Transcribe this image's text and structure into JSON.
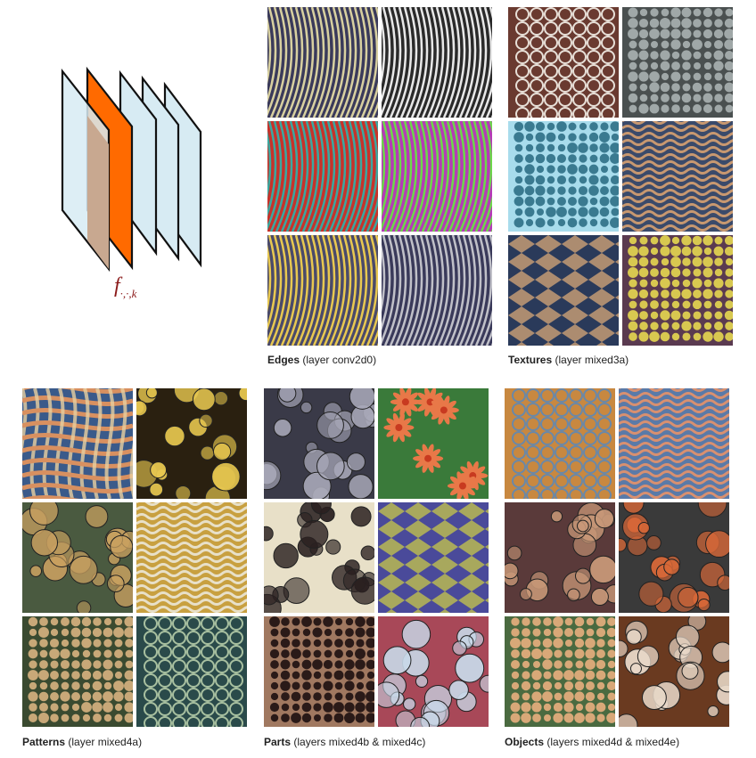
{
  "diagram": {
    "formula_f": "f",
    "formula_sub": "·,·,k",
    "highlight_color": "#ff6a00",
    "plane_color": "#d7ebf3"
  },
  "panels": [
    {
      "id": "edges",
      "title": "Edges",
      "layer": "(layer conv2d0)",
      "tiles": [
        {
          "name": "edges-tile-1",
          "pattern": "stripes",
          "c1": "#3a3a5a",
          "c2": "#d8d0a0"
        },
        {
          "name": "edges-tile-2",
          "pattern": "stripes",
          "c1": "#2a2a2a",
          "c2": "#e8e8e8"
        },
        {
          "name": "edges-tile-3",
          "pattern": "stripes",
          "c1": "#c8322a",
          "c2": "#3aa8a0"
        },
        {
          "name": "edges-tile-4",
          "pattern": "stripes",
          "c1": "#b63ab8",
          "c2": "#6cd84a"
        },
        {
          "name": "edges-tile-5",
          "pattern": "stripes",
          "c1": "#4a4a6a",
          "c2": "#e8c850"
        },
        {
          "name": "edges-tile-6",
          "pattern": "stripes",
          "c1": "#3a3a5a",
          "c2": "#c0c0c8"
        }
      ]
    },
    {
      "id": "textures",
      "title": "Textures",
      "layer": "(layer mixed3a)",
      "tiles": [
        {
          "name": "textures-tile-1",
          "pattern": "cells",
          "c1": "#6a3a30",
          "c2": "#e8e0d8"
        },
        {
          "name": "textures-tile-2",
          "pattern": "dots",
          "c1": "#4a5050",
          "c2": "#a0a8a8"
        },
        {
          "name": "textures-tile-3",
          "pattern": "dots",
          "c1": "#a8dcec",
          "c2": "#3a7a90"
        },
        {
          "name": "textures-tile-4",
          "pattern": "waves",
          "c1": "#3a4a6a",
          "c2": "#c89870"
        },
        {
          "name": "textures-tile-5",
          "pattern": "diamonds",
          "c1": "#2a3a5a",
          "c2": "#d8a878"
        },
        {
          "name": "textures-tile-6",
          "pattern": "dots",
          "c1": "#5a3a50",
          "c2": "#d8c850"
        }
      ]
    },
    {
      "id": "patterns",
      "title": "Patterns",
      "layer": "(layer mixed4a)",
      "tiles": [
        {
          "name": "patterns-tile-1",
          "pattern": "weave",
          "c1": "#3a5a8a",
          "c2": "#d89060"
        },
        {
          "name": "patterns-tile-2",
          "pattern": "blobs",
          "c1": "#2a2010",
          "c2": "#e8c850"
        },
        {
          "name": "patterns-tile-3",
          "pattern": "blobs",
          "c1": "#4a5a40",
          "c2": "#c8a060"
        },
        {
          "name": "patterns-tile-4",
          "pattern": "waves",
          "c1": "#c8a040",
          "c2": "#e8e0c8"
        },
        {
          "name": "patterns-tile-5",
          "pattern": "dots",
          "c1": "#3a4a30",
          "c2": "#c8a878"
        },
        {
          "name": "patterns-tile-6",
          "pattern": "cells",
          "c1": "#2a4a4a",
          "c2": "#a8c0a0"
        }
      ]
    },
    {
      "id": "parts",
      "title": "Parts",
      "layer": "(layers mixed4b & mixed4c)",
      "tiles": [
        {
          "name": "parts-tile-1",
          "pattern": "blobs",
          "c1": "#3a3a48",
          "c2": "#a8a8b8"
        },
        {
          "name": "parts-tile-2",
          "pattern": "flowers",
          "c1": "#3a7a3a",
          "c2": "#e87848"
        },
        {
          "name": "parts-tile-3",
          "pattern": "blobs",
          "c1": "#e8e0c8",
          "c2": "#2a2020"
        },
        {
          "name": "parts-tile-4",
          "pattern": "diamonds",
          "c1": "#4a4a9a",
          "c2": "#c8c848"
        },
        {
          "name": "parts-tile-5",
          "pattern": "dots",
          "c1": "#a07860",
          "c2": "#2a1a18"
        },
        {
          "name": "parts-tile-6",
          "pattern": "blobs",
          "c1": "#a84858",
          "c2": "#c8d8e8"
        }
      ]
    },
    {
      "id": "objects",
      "title": "Objects",
      "layer": "(layers mixed4d & mixed4e)",
      "tiles": [
        {
          "name": "objects-tile-1",
          "pattern": "cells",
          "c1": "#c88840",
          "c2": "#6a88a8"
        },
        {
          "name": "objects-tile-2",
          "pattern": "waves",
          "c1": "#5a7aa8",
          "c2": "#d89070"
        },
        {
          "name": "objects-tile-3",
          "pattern": "blobs",
          "c1": "#5a3a3a",
          "c2": "#c89878"
        },
        {
          "name": "objects-tile-4",
          "pattern": "blobs",
          "c1": "#3a3a3a",
          "c2": "#d86838"
        },
        {
          "name": "objects-tile-5",
          "pattern": "dots",
          "c1": "#4a6a40",
          "c2": "#d8a878"
        },
        {
          "name": "objects-tile-6",
          "pattern": "blobs",
          "c1": "#6a3a20",
          "c2": "#e8d8c8"
        }
      ]
    }
  ]
}
